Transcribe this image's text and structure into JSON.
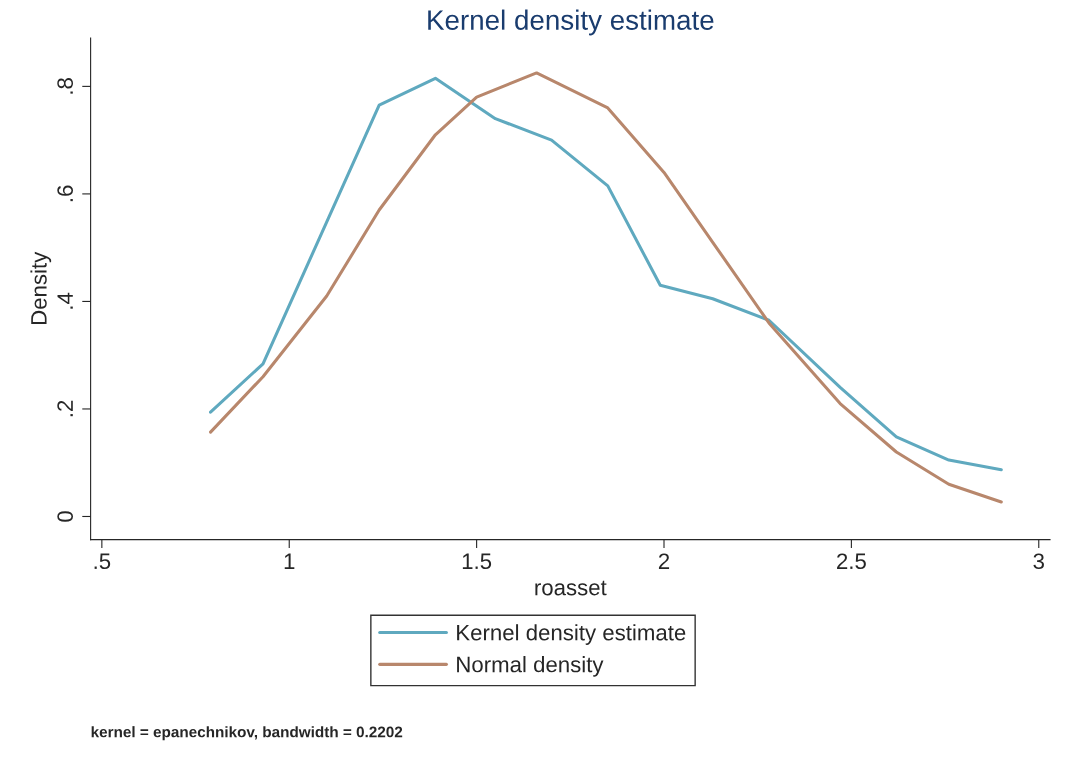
{
  "chart_data": {
    "type": "line",
    "title": "Kernel density estimate",
    "xlabel": "roasset",
    "ylabel": "Density",
    "series": [
      {
        "name": "Kernel density estimate",
        "color": "#5fa9bf",
        "x": [
          0.79,
          0.93,
          1.24,
          1.39,
          1.55,
          1.7,
          1.85,
          1.99,
          2.13,
          2.28,
          2.47,
          2.62,
          2.76,
          2.9
        ],
        "values": [
          0.194,
          0.284,
          0.765,
          0.815,
          0.74,
          0.7,
          0.615,
          0.43,
          0.405,
          0.365,
          0.24,
          0.148,
          0.105,
          0.087
        ]
      },
      {
        "name": "Normal density",
        "color": "#b8876c",
        "x": [
          0.79,
          0.93,
          1.1,
          1.24,
          1.39,
          1.5,
          1.66,
          1.85,
          2.0,
          2.13,
          2.28,
          2.47,
          2.62,
          2.76,
          2.9
        ],
        "values": [
          0.157,
          0.26,
          0.41,
          0.57,
          0.71,
          0.78,
          0.825,
          0.76,
          0.64,
          0.51,
          0.36,
          0.21,
          0.12,
          0.06,
          0.027
        ]
      }
    ],
    "xlim": [
      0.47,
      3.03
    ],
    "ylim": [
      -0.043,
      0.89
    ],
    "xticks": [
      {
        "value": 0.5,
        "label": ".5"
      },
      1,
      1.5,
      2,
      2.5,
      3
    ],
    "yticks": [
      0,
      {
        "value": 0.2,
        "label": ".2"
      },
      {
        "value": 0.4,
        "label": ".4"
      },
      {
        "value": 0.6,
        "label": ".6"
      },
      {
        "value": 0.8,
        "label": ".8"
      }
    ],
    "grid": false,
    "legend": "bottom",
    "annotations": [
      "kernel = epanechnikov, bandwidth = 0.2202"
    ]
  }
}
